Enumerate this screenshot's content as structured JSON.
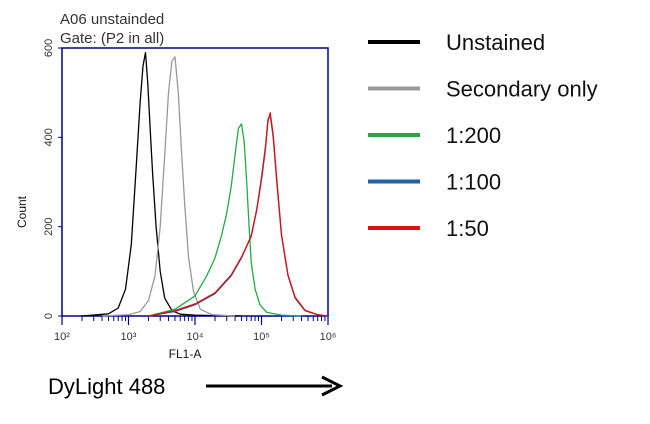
{
  "chart_data": {
    "type": "line",
    "title": "A06 unstainded",
    "subtitle": "Gate: (P2 in all)",
    "xlabel": "FL1-A",
    "ylabel": "Count",
    "x_scale": "log",
    "xlim": [
      100,
      1000000
    ],
    "ylim": [
      0,
      600
    ],
    "x_ticks": [
      {
        "value": 100,
        "label": "10²"
      },
      {
        "value": 1000,
        "label": "10³"
      },
      {
        "value": 10000,
        "label": "10⁴"
      },
      {
        "value": 100000,
        "label": "10⁵"
      },
      {
        "value": 1000000,
        "label": "10⁶"
      }
    ],
    "y_ticks": [
      {
        "value": 0,
        "label": "0"
      },
      {
        "value": 200,
        "label": "200"
      },
      {
        "value": 400,
        "label": "400"
      },
      {
        "value": 600,
        "label": "600"
      }
    ],
    "legend_position": "right",
    "series": [
      {
        "name": "Unstained",
        "color": "#000000",
        "x": [
          200,
          500,
          700,
          900,
          1100,
          1300,
          1500,
          1650,
          1800,
          1950,
          2100,
          2300,
          2600,
          3000,
          3500,
          4500,
          6000,
          10000,
          20000,
          50000
        ],
        "y": [
          0,
          5,
          18,
          60,
          160,
          330,
          480,
          560,
          590,
          520,
          430,
          320,
          200,
          100,
          40,
          12,
          4,
          2,
          1,
          0
        ]
      },
      {
        "name": "Secondary only",
        "color": "#999999",
        "x": [
          400,
          1000,
          1500,
          2000,
          2500,
          3000,
          3500,
          4000,
          4500,
          5000,
          5600,
          6200,
          7000,
          8000,
          9500,
          12000,
          18000,
          40000
        ],
        "y": [
          0,
          3,
          10,
          35,
          90,
          200,
          360,
          500,
          570,
          580,
          500,
          380,
          250,
          130,
          55,
          15,
          3,
          0
        ]
      },
      {
        "name": "1:200",
        "color": "#22aa44",
        "x": [
          2000,
          5000,
          10000,
          15000,
          20000,
          25000,
          30000,
          35000,
          40000,
          45000,
          50000,
          55000,
          60000,
          65000,
          70000,
          80000,
          95000,
          120000,
          200000,
          400000
        ],
        "y": [
          0,
          15,
          45,
          90,
          130,
          180,
          230,
          290,
          360,
          420,
          430,
          390,
          300,
          200,
          120,
          60,
          25,
          8,
          2,
          0
        ]
      },
      {
        "name": "1:100",
        "color": "#1f5fa8",
        "x": [
          2000,
          5000,
          10000,
          20000,
          35000,
          50000,
          70000,
          85000,
          100000,
          115000,
          125000,
          135000,
          150000,
          170000,
          200000,
          250000,
          320000,
          450000,
          700000,
          1000000
        ],
        "y": [
          0,
          10,
          25,
          50,
          90,
          130,
          180,
          240,
          310,
          380,
          440,
          450,
          400,
          300,
          180,
          90,
          40,
          12,
          3,
          0
        ]
      },
      {
        "name": "1:50",
        "color": "#dd1111",
        "x": [
          2000,
          5000,
          10000,
          20000,
          35000,
          50000,
          70000,
          85000,
          100000,
          115000,
          125000,
          135000,
          150000,
          170000,
          200000,
          250000,
          320000,
          450000,
          700000,
          1000000
        ],
        "y": [
          0,
          12,
          27,
          52,
          92,
          132,
          178,
          238,
          305,
          375,
          435,
          455,
          405,
          305,
          182,
          92,
          42,
          13,
          3,
          0
        ]
      }
    ]
  },
  "marker": {
    "label": "DyLight 488"
  }
}
